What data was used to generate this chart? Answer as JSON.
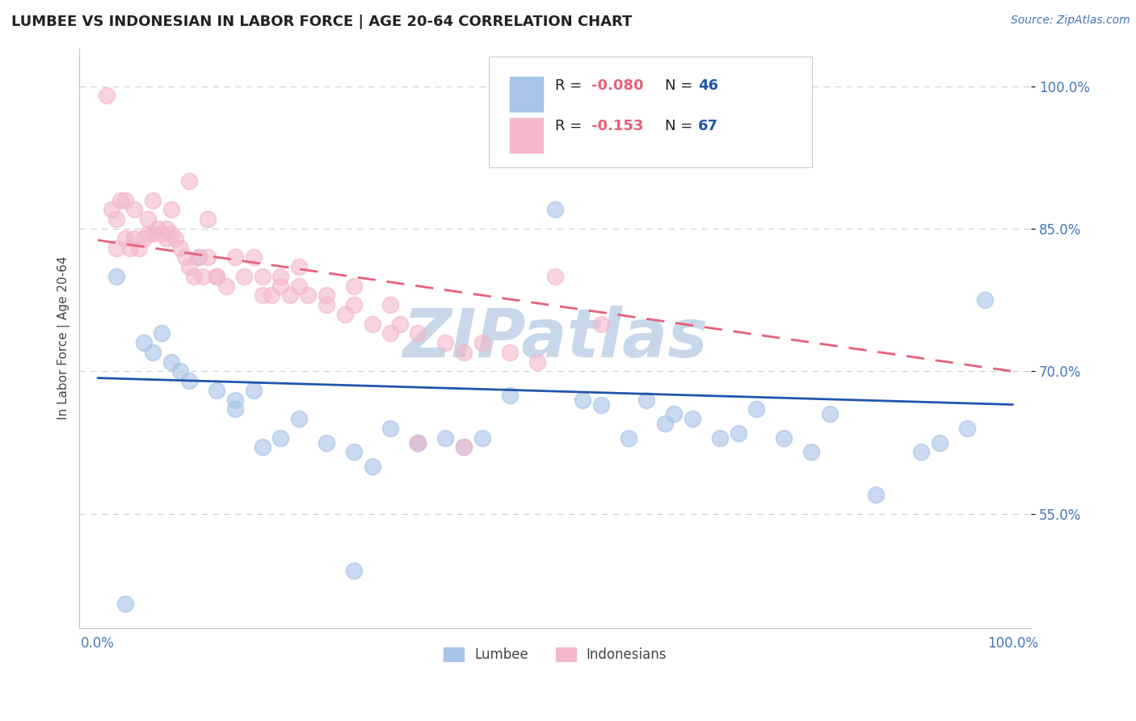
{
  "title": "LUMBEE VS INDONESIAN IN LABOR FORCE | AGE 20-64 CORRELATION CHART",
  "source": "Source: ZipAtlas.com",
  "ylabel": "In Labor Force | Age 20-64",
  "xlim": [
    -0.02,
    1.02
  ],
  "ylim": [
    0.43,
    1.04
  ],
  "yticks": [
    0.55,
    0.7,
    0.85,
    1.0
  ],
  "yticklabels": [
    "55.0%",
    "70.0%",
    "85.0%",
    "100.0%"
  ],
  "lumbee_color": "#a8c4e8",
  "indonesian_color": "#f4b8cc",
  "lumbee_line_color": "#2255aa",
  "indonesian_line_color": "#e8607a",
  "r_color": "#e8607a",
  "n_color": "#2255aa",
  "watermark": "ZIPatlas",
  "watermark_color": "#c8d8ea",
  "background_color": "#ffffff",
  "grid_color": "#c8d4e4",
  "lumbee_x": [
    0.02,
    0.03,
    0.05,
    0.06,
    0.07,
    0.08,
    0.09,
    0.1,
    0.11,
    0.13,
    0.15,
    0.17,
    0.18,
    0.2,
    0.22,
    0.25,
    0.28,
    0.3,
    0.32,
    0.35,
    0.38,
    0.4,
    0.42,
    0.45,
    0.5,
    0.53,
    0.55,
    0.58,
    0.6,
    0.62,
    0.63,
    0.65,
    0.68,
    0.7,
    0.72,
    0.75,
    0.78,
    0.8,
    0.85,
    0.9,
    0.92,
    0.95,
    0.97,
    0.35,
    0.28,
    0.15
  ],
  "lumbee_y": [
    0.8,
    0.455,
    0.73,
    0.72,
    0.74,
    0.71,
    0.7,
    0.69,
    0.82,
    0.68,
    0.66,
    0.68,
    0.62,
    0.63,
    0.65,
    0.625,
    0.615,
    0.6,
    0.64,
    0.625,
    0.63,
    0.62,
    0.63,
    0.675,
    0.87,
    0.67,
    0.665,
    0.63,
    0.67,
    0.645,
    0.655,
    0.65,
    0.63,
    0.635,
    0.66,
    0.63,
    0.615,
    0.655,
    0.57,
    0.615,
    0.625,
    0.64,
    0.775,
    0.625,
    0.49,
    0.67
  ],
  "indonesian_x": [
    0.01,
    0.02,
    0.025,
    0.03,
    0.035,
    0.04,
    0.045,
    0.05,
    0.055,
    0.06,
    0.065,
    0.07,
    0.075,
    0.08,
    0.085,
    0.09,
    0.095,
    0.1,
    0.105,
    0.11,
    0.115,
    0.12,
    0.13,
    0.14,
    0.15,
    0.16,
    0.17,
    0.18,
    0.19,
    0.2,
    0.21,
    0.22,
    0.23,
    0.25,
    0.27,
    0.28,
    0.3,
    0.32,
    0.33,
    0.35,
    0.38,
    0.4,
    0.42,
    0.45,
    0.48,
    0.5,
    0.55,
    0.35,
    0.4,
    0.1,
    0.12,
    0.18,
    0.22,
    0.28,
    0.32,
    0.08,
    0.06,
    0.04,
    0.02,
    0.03,
    0.015,
    0.055,
    0.075,
    0.13,
    0.2,
    0.25
  ],
  "indonesian_y": [
    0.99,
    0.83,
    0.88,
    0.84,
    0.83,
    0.84,
    0.83,
    0.84,
    0.845,
    0.845,
    0.85,
    0.845,
    0.84,
    0.845,
    0.84,
    0.83,
    0.82,
    0.81,
    0.8,
    0.82,
    0.8,
    0.82,
    0.8,
    0.79,
    0.82,
    0.8,
    0.82,
    0.8,
    0.78,
    0.8,
    0.78,
    0.79,
    0.78,
    0.77,
    0.76,
    0.77,
    0.75,
    0.74,
    0.75,
    0.74,
    0.73,
    0.72,
    0.73,
    0.72,
    0.71,
    0.8,
    0.75,
    0.625,
    0.62,
    0.9,
    0.86,
    0.78,
    0.81,
    0.79,
    0.77,
    0.87,
    0.88,
    0.87,
    0.86,
    0.88,
    0.87,
    0.86,
    0.85,
    0.8,
    0.79,
    0.78
  ],
  "lumbee_trend_x": [
    0.0,
    1.0
  ],
  "lumbee_trend_y": [
    0.693,
    0.665
  ],
  "indonesian_trend_x": [
    0.0,
    1.0
  ],
  "indonesian_trend_y": [
    0.838,
    0.7
  ]
}
